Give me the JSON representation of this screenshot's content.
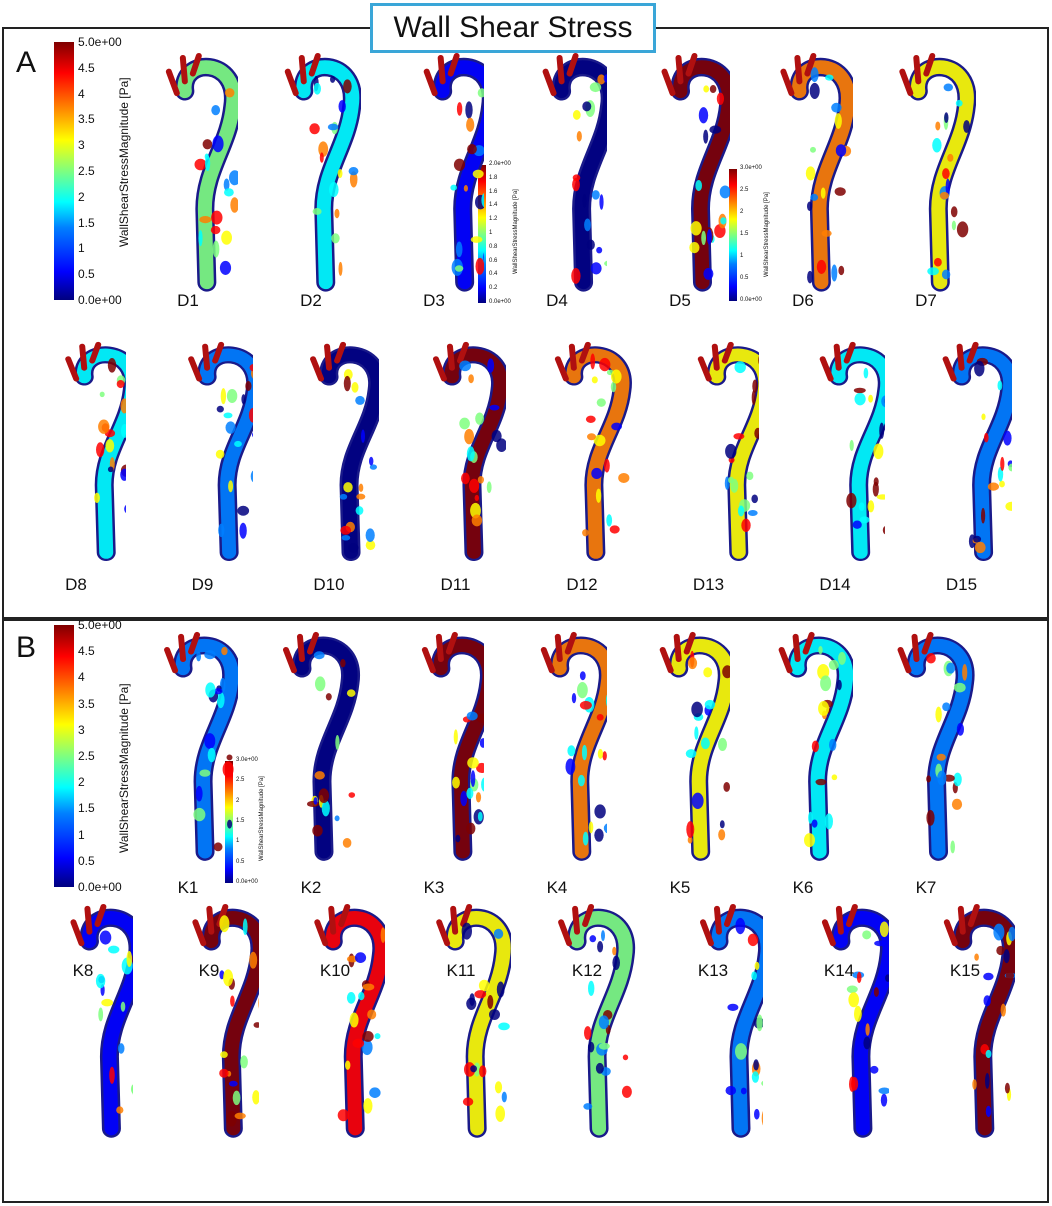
{
  "title": "Wall Shear Stress",
  "panels": {
    "a": {
      "letter": "A",
      "colorbar": {
        "title": "WallShearStressMagnitude  [Pa]",
        "ticks": [
          "5.0e+00",
          "4.5",
          "4",
          "3.5",
          "3",
          "2.5",
          "2",
          "1.5",
          "1",
          "0.5",
          "0.0e+00"
        ]
      },
      "inset_colorbars": [
        {
          "title": "WallShearStressMagnitude  [Pa]",
          "ticks": [
            "2.0e+00",
            "1.8",
            "1.6",
            "1.4",
            "1.2",
            "1",
            "0.8",
            "0.6",
            "0.4",
            "0.2",
            "0.0e+00"
          ]
        },
        {
          "title": "WallShearStressMagnitude  [Pa]",
          "ticks": [
            "3.0e+00",
            "2.5",
            "2",
            "1.5",
            "1",
            "0.5",
            "0.0e+00"
          ]
        }
      ],
      "labels": [
        "D1",
        "D2",
        "D3",
        "D4",
        "D5",
        "D6",
        "D7",
        "D8",
        "D9",
        "D10",
        "D11",
        "D12",
        "D13",
        "D14",
        "D15"
      ]
    },
    "b": {
      "letter": "B",
      "colorbar": {
        "title": "WallShearStressMagnitude [Pa]",
        "ticks": [
          "5.0e+00",
          "4.5",
          "4",
          "3.5",
          "3",
          "2.5",
          "2",
          "1.5",
          "1",
          "0.5",
          "0.0e+00"
        ]
      },
      "inset_colorbars": [
        {
          "title": "WallShearStressMagnitude  [Pa]",
          "ticks": [
            "3.0e+00",
            "2.5",
            "2",
            "1.5",
            "1",
            "0.5",
            "0.0e+00"
          ]
        }
      ],
      "labels": [
        "K1",
        "K2",
        "K3",
        "K4",
        "K5",
        "K6",
        "K7",
        "K8",
        "K9",
        "K10",
        "K11",
        "K12",
        "K13",
        "K14",
        "K15"
      ]
    }
  },
  "colors": {
    "title_border": "#3aa6d8",
    "colormap": [
      "#00007f",
      "#0000ff",
      "#007fff",
      "#00ffff",
      "#7fff7f",
      "#ffff00",
      "#ff7f00",
      "#ff0000",
      "#7f0000"
    ]
  }
}
